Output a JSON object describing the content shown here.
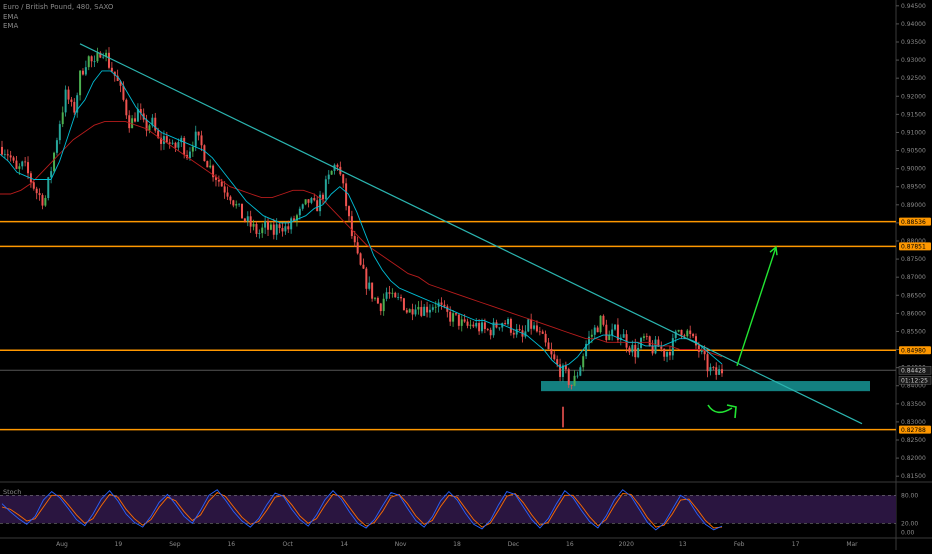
{
  "legend": {
    "symbol_title": "Euro / British Pound, 480, SAXO",
    "ema_1": "EMA",
    "ema_2": "EMA",
    "stoch_label": "Stoch"
  },
  "chart_data": [
    {
      "type": "candlestick",
      "title": "Euro / British Pound, 480, SAXO",
      "y_axis_labels": [
        "0.94500",
        "0.94000",
        "0.93500",
        "0.93000",
        "0.92500",
        "0.92000",
        "0.91500",
        "0.91000",
        "0.90500",
        "0.90000",
        "0.89500",
        "0.89000",
        "0.88500",
        "0.88000",
        "0.87500",
        "0.87000",
        "0.86500",
        "0.86000",
        "0.85500",
        "0.85000",
        "0.84500",
        "0.84000",
        "0.83500",
        "0.83000",
        "0.82500",
        "0.82000",
        "0.81500"
      ],
      "ylim": [
        0.8145,
        0.9455
      ],
      "x_axis_labels": [
        "Aug",
        "19",
        "Sep",
        "16",
        "Oct",
        "14",
        "Nov",
        "18",
        "Dec",
        "16",
        "2020",
        "13",
        "Feb",
        "17",
        "Mar"
      ],
      "grid": false,
      "ohlc_path": [
        0.906,
        0.904,
        0.899,
        0.901,
        0.897,
        0.893,
        0.891,
        0.901,
        0.912,
        0.921,
        0.915,
        0.926,
        0.931,
        0.928,
        0.934,
        0.929,
        0.925,
        0.919,
        0.912,
        0.916,
        0.911,
        0.913,
        0.907,
        0.909,
        0.905,
        0.908,
        0.904,
        0.909,
        0.906,
        0.901,
        0.898,
        0.895,
        0.893,
        0.889,
        0.886,
        0.884,
        0.882,
        0.884,
        0.882,
        0.885,
        0.883,
        0.886,
        0.888,
        0.891,
        0.889,
        0.893,
        0.898,
        0.902,
        0.893,
        0.882,
        0.874,
        0.869,
        0.865,
        0.862,
        0.866,
        0.863,
        0.864,
        0.86,
        0.863,
        0.861,
        0.862,
        0.863,
        0.86,
        0.859,
        0.858,
        0.856,
        0.857,
        0.856,
        0.855,
        0.856,
        0.858,
        0.857,
        0.855,
        0.853,
        0.857,
        0.855,
        0.852,
        0.848,
        0.845,
        0.843,
        0.84,
        0.845,
        0.852,
        0.855,
        0.858,
        0.853,
        0.855,
        0.854,
        0.851,
        0.849,
        0.853,
        0.85,
        0.851,
        0.849,
        0.851,
        0.856,
        0.855,
        0.852,
        0.849,
        0.845,
        0.843,
        0.8443
      ],
      "ema_fast_path": [
        0.904,
        0.902,
        0.899,
        0.898,
        0.897,
        0.897,
        0.897,
        0.902,
        0.909,
        0.916,
        0.919,
        0.924,
        0.927,
        0.927,
        0.925,
        0.921,
        0.917,
        0.914,
        0.912,
        0.91,
        0.909,
        0.908,
        0.907,
        0.906,
        0.905,
        0.903,
        0.9,
        0.897,
        0.894,
        0.891,
        0.889,
        0.887,
        0.886,
        0.885,
        0.885,
        0.886,
        0.887,
        0.889,
        0.89,
        0.893,
        0.895,
        0.893,
        0.888,
        0.882,
        0.876,
        0.872,
        0.869,
        0.867,
        0.866,
        0.865,
        0.864,
        0.863,
        0.862,
        0.861,
        0.86,
        0.859,
        0.858,
        0.858,
        0.857,
        0.857,
        0.856,
        0.855,
        0.854,
        0.852,
        0.85,
        0.847,
        0.845,
        0.846,
        0.848,
        0.851,
        0.853,
        0.854,
        0.854,
        0.853,
        0.852,
        0.852,
        0.851,
        0.851,
        0.851,
        0.852,
        0.853,
        0.853,
        0.852,
        0.85,
        0.848,
        0.846
      ],
      "ema_slow_path": [
        0.893,
        0.893,
        0.894,
        0.896,
        0.899,
        0.902,
        0.905,
        0.908,
        0.91,
        0.912,
        0.913,
        0.913,
        0.913,
        0.912,
        0.911,
        0.909,
        0.907,
        0.905,
        0.903,
        0.901,
        0.899,
        0.897,
        0.895,
        0.894,
        0.893,
        0.892,
        0.892,
        0.893,
        0.894,
        0.894,
        0.893,
        0.891,
        0.888,
        0.885,
        0.882,
        0.879,
        0.877,
        0.875,
        0.873,
        0.871,
        0.87,
        0.868,
        0.867,
        0.866,
        0.865,
        0.864,
        0.863,
        0.862,
        0.861,
        0.86,
        0.859,
        0.858,
        0.857,
        0.856,
        0.855,
        0.854,
        0.853,
        0.853,
        0.852,
        0.852,
        0.852,
        0.852,
        0.852,
        0.851,
        0.851,
        0.85,
        0.85,
        0.85,
        0.849,
        0.848
      ],
      "annotations": {
        "trendline": {
          "start_price": 0.9345,
          "end_price": 0.8295
        },
        "horizontal_levels": [
          {
            "price": 0.88536,
            "label": "0.88536"
          },
          {
            "price": 0.87851,
            "label": "0.87851"
          },
          {
            "price": 0.8498,
            "label": "0.84980"
          },
          {
            "price": 0.82788,
            "label": "0.82788"
          }
        ],
        "current_price": {
          "price": 0.84428,
          "label": "0.84428",
          "countdown": "01:12:25"
        },
        "support_zone": {
          "price_high": 0.8413,
          "price_low": 0.8385
        },
        "projection_arrow": {
          "from_price": 0.8455,
          "to_price": 0.8783
        }
      },
      "colors": {
        "up_candle": "#26a69a",
        "up_candle_bright": "#4caf50",
        "down_candle": "#ef5350",
        "trendline": "#2bb5b0",
        "levels": "#ff9800",
        "support_zone": "#138080",
        "projection_arrow": "#22e533",
        "ema_fast": "#00bcd4",
        "ema_slow": "#b71c1c"
      }
    },
    {
      "type": "line",
      "title": "Stoch",
      "y_axis_labels": [
        "80.00",
        "20.00",
        "0.00"
      ],
      "ylim": [
        -5,
        100
      ],
      "bands": {
        "upper": 80,
        "lower": 20
      },
      "colors": {
        "k": "#2962ff",
        "d": "#ff6d00",
        "band_fill": "#2a1540"
      },
      "k_path": [
        62,
        45,
        30,
        18,
        35,
        70,
        88,
        75,
        52,
        28,
        15,
        40,
        72,
        90,
        68,
        40,
        22,
        12,
        35,
        65,
        82,
        60,
        35,
        20,
        48,
        80,
        92,
        70,
        45,
        25,
        12,
        30,
        60,
        85,
        78,
        50,
        28,
        14,
        38,
        70,
        90,
        72,
        44,
        20,
        10,
        28,
        58,
        86,
        80,
        52,
        26,
        12,
        34,
        68,
        88,
        70,
        42,
        18,
        8,
        26,
        60,
        88,
        82,
        55,
        28,
        10,
        30,
        62,
        90,
        75,
        48,
        24,
        10,
        36,
        70,
        92,
        78,
        50,
        22,
        6,
        20,
        50,
        80,
        68,
        40,
        18,
        6,
        14
      ],
      "d_path": [
        55,
        50,
        38,
        25,
        30,
        55,
        80,
        80,
        60,
        38,
        20,
        30,
        58,
        82,
        76,
        50,
        30,
        16,
        28,
        55,
        76,
        68,
        45,
        26,
        38,
        68,
        86,
        78,
        55,
        33,
        18,
        24,
        48,
        76,
        80,
        60,
        36,
        20,
        30,
        58,
        82,
        78,
        54,
        30,
        14,
        22,
        46,
        76,
        82,
        62,
        36,
        18,
        26,
        56,
        80,
        76,
        52,
        28,
        12,
        20,
        48,
        78,
        84,
        64,
        38,
        16,
        22,
        52,
        80,
        80,
        58,
        34,
        15,
        28,
        58,
        84,
        82,
        60,
        32,
        12,
        16,
        40,
        70,
        72,
        50,
        26,
        10,
        12
      ]
    }
  ]
}
